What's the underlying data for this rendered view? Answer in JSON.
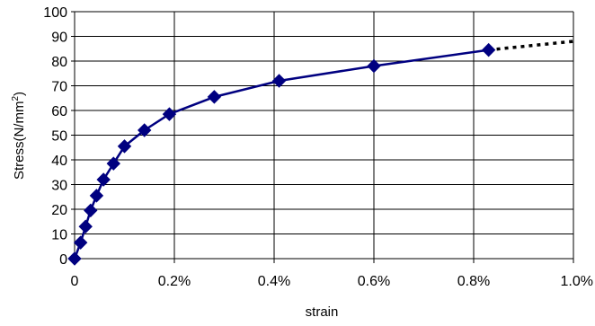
{
  "chart_data": {
    "type": "line",
    "title": "",
    "xlabel": "strain",
    "ylabel": "Stress(N/mm",
    "ylabel_superscript": "2",
    "ylabel_suffix": ")",
    "xlim": [
      0,
      0.01
    ],
    "ylim": [
      0,
      100
    ],
    "x_ticks": [
      0,
      0.002,
      0.004,
      0.006,
      0.008,
      0.01
    ],
    "x_tick_labels": [
      "0",
      "0.2%",
      "0.4%",
      "0.6%",
      "0.8%",
      "1.0%"
    ],
    "y_ticks": [
      0,
      10,
      20,
      30,
      40,
      50,
      60,
      70,
      80,
      90,
      100
    ],
    "y_tick_labels": [
      "0",
      "10",
      "20",
      "30",
      "40",
      "50",
      "60",
      "70",
      "80",
      "90",
      "100"
    ],
    "grid": true,
    "legend": "none",
    "series": [
      {
        "marker": "diamond",
        "color": "#000080",
        "x": [
          0,
          0.00012,
          0.00022,
          0.00032,
          0.00044,
          0.00058,
          0.00078,
          0.001,
          0.0014,
          0.0019,
          0.0028,
          0.0041,
          0.006,
          0.0083
        ],
        "y": [
          0,
          6.5,
          13,
          19.5,
          25.5,
          32,
          38.5,
          45.5,
          52,
          58.5,
          65.5,
          72,
          78,
          84.5
        ]
      }
    ],
    "extension": {
      "style": "dotted",
      "color": "#000000",
      "x": [
        0.0083,
        0.01
      ],
      "y": [
        84.5,
        88
      ]
    }
  }
}
